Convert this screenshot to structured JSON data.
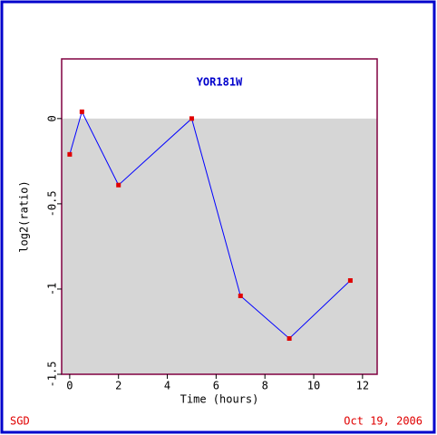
{
  "chart_data": {
    "type": "line",
    "title": "YOR181W",
    "x_label": "Time (hours)",
    "y_label": "log2(ratio)",
    "x": [
      0,
      0.5,
      2,
      5,
      7,
      9,
      11.5
    ],
    "series": [
      {
        "name": "YOR181W",
        "color": "#0000ff",
        "marker_color": "#e00000",
        "values": [
          -0.21,
          0.04,
          -0.39,
          0,
          -1.04,
          -1.29,
          -0.95
        ]
      }
    ],
    "xlim": [
      -0.33,
      12.6
    ],
    "xticks": [
      0,
      2,
      4,
      6,
      8,
      10,
      12
    ],
    "ylim": [
      -1.5,
      0.35
    ],
    "yticks": [
      0,
      -0.5,
      -1,
      -1.5
    ],
    "footer_left": "SGD",
    "footer_right": "Oct 19, 2006"
  }
}
